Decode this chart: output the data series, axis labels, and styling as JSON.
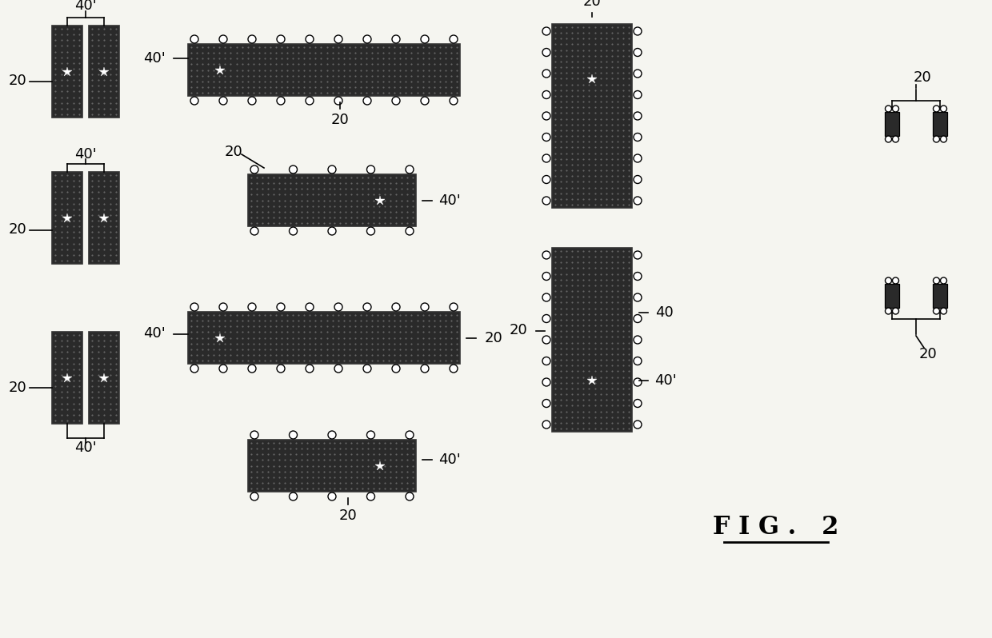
{
  "bg_color": "#f5f5f0",
  "comp_color": "#2a2a2a",
  "title": "F I G .   2",
  "label_20": "20",
  "label_40": "40",
  "label_40p": "40'",
  "fig_width": 1240,
  "fig_height": 798
}
